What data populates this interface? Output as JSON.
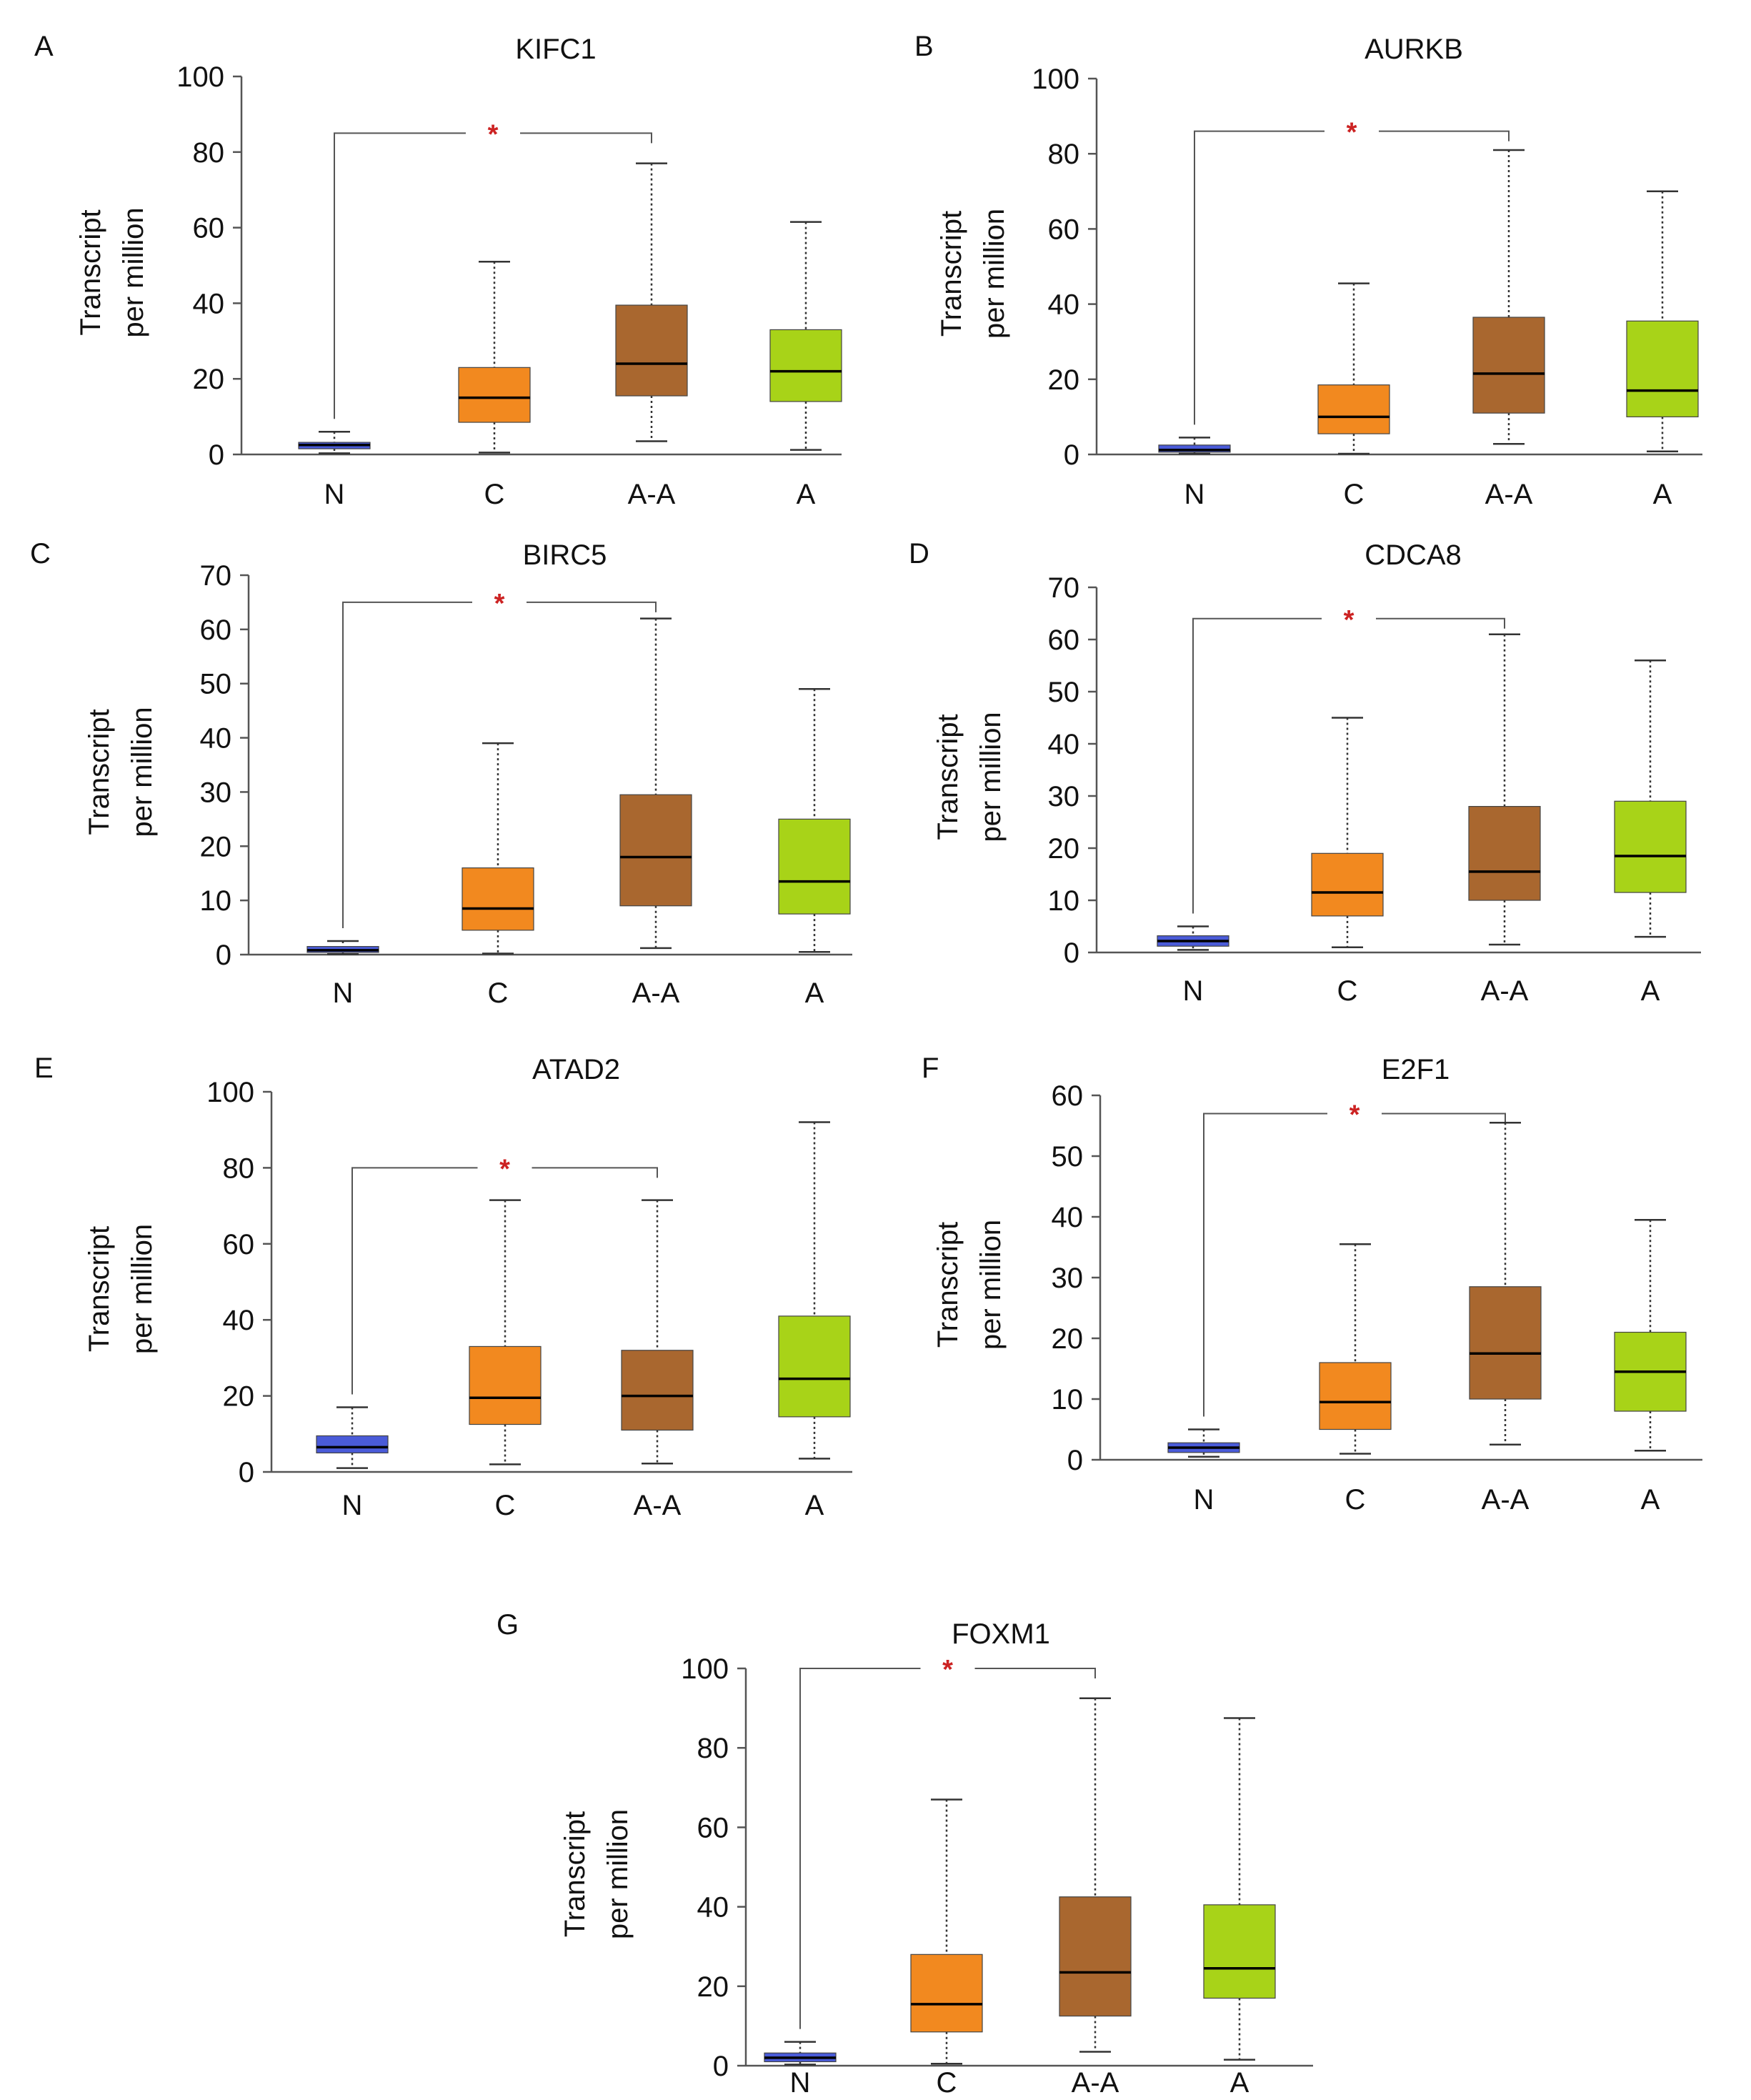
{
  "figure": {
    "y_axis_label_line1": "Transcript",
    "y_axis_label_line2": "per million"
  },
  "colors": {
    "N": "#4a5bd8",
    "C": "#f2891f",
    "A-A": "#a9672f",
    "A": "#a8d318",
    "significance": "#cc2222"
  },
  "chart_data": [
    {
      "type": "box",
      "panel": "A",
      "title": "KIFC1",
      "ylabel": "Transcript per million",
      "ylim": [
        0,
        100
      ],
      "yticks": [
        0,
        20,
        40,
        60,
        80,
        100
      ],
      "categories": [
        "N",
        "C",
        "A-A",
        "A"
      ],
      "boxes": [
        {
          "min": 0.3,
          "q1": 1.5,
          "median": 2.5,
          "q3": 3.2,
          "max": 6
        },
        {
          "min": 0.5,
          "q1": 8.5,
          "median": 15,
          "q3": 23,
          "max": 51
        },
        {
          "min": 3.5,
          "q1": 15.5,
          "median": 24,
          "q3": 39.5,
          "max": 77
        },
        {
          "min": 1.2,
          "q1": 14,
          "median": 22,
          "q3": 33,
          "max": 61.5
        }
      ],
      "significance": {
        "from": "N",
        "to": "A-A",
        "y": 85,
        "label": "*"
      }
    },
    {
      "type": "box",
      "panel": "B",
      "title": "AURKB",
      "ylabel": "Transcript per million",
      "ylim": [
        0,
        100
      ],
      "yticks": [
        0,
        20,
        40,
        60,
        80,
        100
      ],
      "categories": [
        "N",
        "C",
        "A-A",
        "A"
      ],
      "boxes": [
        {
          "min": 0.2,
          "q1": 0.6,
          "median": 1.2,
          "q3": 2.5,
          "max": 4.5
        },
        {
          "min": 0.2,
          "q1": 5.5,
          "median": 10,
          "q3": 18.5,
          "max": 45.5
        },
        {
          "min": 2.8,
          "q1": 11,
          "median": 21.5,
          "q3": 36.5,
          "max": 81
        },
        {
          "min": 0.8,
          "q1": 10,
          "median": 17,
          "q3": 35.5,
          "max": 70
        }
      ],
      "significance": {
        "from": "N",
        "to": "A-A",
        "y": 86,
        "label": "*"
      }
    },
    {
      "type": "box",
      "panel": "C",
      "title": "BIRC5",
      "ylabel": "Transcript per million",
      "ylim": [
        0,
        70
      ],
      "yticks": [
        0,
        10,
        20,
        30,
        40,
        50,
        60,
        70
      ],
      "categories": [
        "N",
        "C",
        "A-A",
        "A"
      ],
      "boxes": [
        {
          "min": 0.1,
          "q1": 0.4,
          "median": 0.8,
          "q3": 1.5,
          "max": 2.5
        },
        {
          "min": 0.2,
          "q1": 4.5,
          "median": 8.5,
          "q3": 16,
          "max": 39
        },
        {
          "min": 1.2,
          "q1": 9,
          "median": 18,
          "q3": 29.5,
          "max": 62
        },
        {
          "min": 0.5,
          "q1": 7.5,
          "median": 13.5,
          "q3": 25,
          "max": 49
        }
      ],
      "significance": {
        "from": "N",
        "to": "A-A",
        "y": 65,
        "label": "*"
      }
    },
    {
      "type": "box",
      "panel": "D",
      "title": "CDCA8",
      "ylabel": "Transcript per million",
      "ylim": [
        0,
        70
      ],
      "yticks": [
        0,
        10,
        20,
        30,
        40,
        50,
        60,
        70
      ],
      "categories": [
        "N",
        "C",
        "A-A",
        "A"
      ],
      "boxes": [
        {
          "min": 0.5,
          "q1": 1.2,
          "median": 2.2,
          "q3": 3.2,
          "max": 5
        },
        {
          "min": 1,
          "q1": 7,
          "median": 11.5,
          "q3": 19,
          "max": 45
        },
        {
          "min": 1.5,
          "q1": 10,
          "median": 15.5,
          "q3": 28,
          "max": 61
        },
        {
          "min": 3,
          "q1": 11.5,
          "median": 18.5,
          "q3": 29,
          "max": 56
        }
      ],
      "significance": {
        "from": "N",
        "to": "A-A",
        "y": 64,
        "label": "*"
      }
    },
    {
      "type": "box",
      "panel": "E",
      "title": "ATAD2",
      "ylabel": "Transcript per million",
      "ylim": [
        0,
        100
      ],
      "yticks": [
        0,
        20,
        40,
        60,
        80,
        100
      ],
      "categories": [
        "N",
        "C",
        "A-A",
        "A"
      ],
      "boxes": [
        {
          "min": 1,
          "q1": 5,
          "median": 6.5,
          "q3": 9.5,
          "max": 17
        },
        {
          "min": 2,
          "q1": 12.5,
          "median": 19.5,
          "q3": 33,
          "max": 71.5
        },
        {
          "min": 2.2,
          "q1": 11,
          "median": 20,
          "q3": 32,
          "max": 71.5
        },
        {
          "min": 3.5,
          "q1": 14.5,
          "median": 24.5,
          "q3": 41,
          "max": 92
        }
      ],
      "significance": {
        "from": "N",
        "to": "A-A",
        "y": 80,
        "label": "*"
      }
    },
    {
      "type": "box",
      "panel": "F",
      "title": "E2F1",
      "ylabel": "Transcript per million",
      "ylim": [
        0,
        60
      ],
      "yticks": [
        0,
        10,
        20,
        30,
        40,
        50,
        60
      ],
      "categories": [
        "N",
        "C",
        "A-A",
        "A"
      ],
      "boxes": [
        {
          "min": 0.5,
          "q1": 1.2,
          "median": 2,
          "q3": 2.8,
          "max": 5
        },
        {
          "min": 1,
          "q1": 5,
          "median": 9.5,
          "q3": 16,
          "max": 35.5
        },
        {
          "min": 2.5,
          "q1": 10,
          "median": 17.5,
          "q3": 28.5,
          "max": 55.5
        },
        {
          "min": 1.5,
          "q1": 8,
          "median": 14.5,
          "q3": 21,
          "max": 39.5
        }
      ],
      "significance": {
        "from": "N",
        "to": "A-A",
        "y": 57,
        "label": "*"
      }
    },
    {
      "type": "box",
      "panel": "G",
      "title": "FOXM1",
      "ylabel": "Transcript per million",
      "ylim": [
        0,
        100
      ],
      "yticks": [
        0,
        20,
        40,
        60,
        80,
        100
      ],
      "categories": [
        "N",
        "C",
        "A-A",
        "A"
      ],
      "boxes": [
        {
          "min": 0.3,
          "q1": 1,
          "median": 2,
          "q3": 3.2,
          "max": 6
        },
        {
          "min": 0.5,
          "q1": 8.5,
          "median": 15.5,
          "q3": 28,
          "max": 67
        },
        {
          "min": 3.5,
          "q1": 12.5,
          "median": 23.5,
          "q3": 42.5,
          "max": 92.5
        },
        {
          "min": 1.5,
          "q1": 17,
          "median": 24.5,
          "q3": 40.5,
          "max": 87.5
        }
      ],
      "significance": {
        "from": "N",
        "to": "A-A",
        "y": 100,
        "label": "*"
      }
    }
  ]
}
